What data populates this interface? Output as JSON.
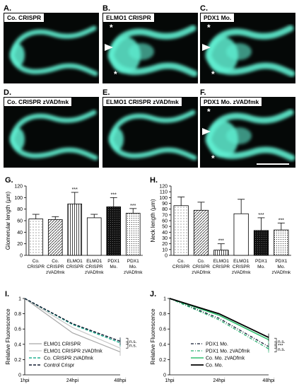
{
  "colors": {
    "fluorescence": "#5ff0d2",
    "background": "#050807"
  },
  "micrographs": [
    {
      "letter": "A.",
      "title": "Co. CRISPR",
      "stars": [],
      "arrowhead": false
    },
    {
      "letter": "B.",
      "title": "ELMO1 CRISPR",
      "stars": [
        "*",
        "*"
      ],
      "arrowhead": true
    },
    {
      "letter": "C.",
      "title": "PDX1 Mo.",
      "stars": [
        "*",
        "*"
      ],
      "arrowhead": true
    },
    {
      "letter": "D.",
      "title": "Co. CRISPR zVADfmk",
      "stars": [],
      "arrowhead": false
    },
    {
      "letter": "E.",
      "title": "ELMO1 CRISPR zVADfmk",
      "stars": [],
      "arrowhead": false
    },
    {
      "letter": "F.",
      "title": "PDX1 Mo. zVADfmk",
      "stars": [
        "*",
        "*"
      ],
      "arrowhead": true
    }
  ],
  "chart_data": [
    {
      "letter": "G.",
      "type": "bar",
      "ylabel": "Glomerular length (µm)",
      "ylim": [
        0,
        120
      ],
      "yticks": [
        "0",
        "20",
        "40",
        "60",
        "80",
        "100",
        "120"
      ],
      "categories": [
        [
          "Co.",
          "CRISPR"
        ],
        [
          "Co.",
          "CRISPR",
          "zVADfmk"
        ],
        [
          "ELMO1",
          "CRISPR"
        ],
        [
          "ELMO1",
          "CRISPR",
          "zVADfmk"
        ],
        [
          "PDX1",
          "Mo."
        ],
        [
          "PDX1",
          "Mo.",
          "zVADfmk"
        ]
      ],
      "values": [
        63,
        62,
        89,
        65,
        84,
        73
      ],
      "errors": [
        8,
        5,
        20,
        6,
        16,
        8
      ],
      "patterns": [
        "dots",
        "diag",
        "vlines",
        "white",
        "black",
        "dotsdense"
      ],
      "annotations": [
        "",
        "",
        "***",
        "",
        "***",
        "***"
      ]
    },
    {
      "letter": "H.",
      "type": "bar",
      "ylabel": "Neck length (µm)",
      "ylim": [
        0,
        120
      ],
      "yticks": [
        "0",
        "10",
        "20",
        "30",
        "40",
        "50",
        "60",
        "70",
        "80",
        "90",
        "100",
        "110",
        "120"
      ],
      "categories": [
        [
          "Co.",
          "CRISPR"
        ],
        [
          "Co.",
          "CRISPR",
          "zVADfmk"
        ],
        [
          "ELMO1",
          "CRISPR"
        ],
        [
          "ELMO1",
          "CRISPR",
          "zVADfmk"
        ],
        [
          "PDX1",
          "Mo."
        ],
        [
          "PDX1",
          "Mo.",
          "zVADfmk"
        ]
      ],
      "values": [
        86,
        78,
        9,
        72,
        43,
        44
      ],
      "errors": [
        15,
        14,
        11,
        25,
        22,
        12
      ],
      "patterns": [
        "dots",
        "diag",
        "vlines",
        "white",
        "black",
        "dotsdense"
      ],
      "annotations": [
        "",
        "",
        "***",
        "",
        "***",
        "***"
      ]
    },
    {
      "letter": "I.",
      "type": "line",
      "ylabel": "Relative Fluorescence",
      "ylim": [
        0,
        1
      ],
      "yticks": [
        "0",
        "0.2",
        "0.4",
        "0.6",
        "0.8",
        "1"
      ],
      "x": [
        "1hpi",
        "24hpi",
        "48hpi"
      ],
      "series": [
        {
          "name": "ELMO1 CRISPR",
          "values": [
            1.0,
            0.55,
            0.3
          ],
          "color": "#a8a8a8",
          "dash": "",
          "width": 1.2
        },
        {
          "name": "ELMO1 CRISPR zVADfmk",
          "values": [
            1.0,
            0.62,
            0.35
          ],
          "color": "#c8c8c8",
          "dash": "",
          "width": 1.2
        },
        {
          "name": "Co. CRISPR zVADfmk",
          "values": [
            1.0,
            0.66,
            0.42
          ],
          "color": "#20b090",
          "dash": "4,2",
          "width": 1.4
        },
        {
          "name": "Control Crispr",
          "values": [
            1.0,
            0.67,
            0.44
          ],
          "color": "#101a30",
          "dash": "4,2",
          "width": 1.4
        }
      ],
      "significance": [
        "n.s.",
        "n.s."
      ]
    },
    {
      "letter": "J.",
      "type": "line",
      "ylabel": "Relative Fluorescence",
      "ylim": [
        0,
        1
      ],
      "yticks": [
        "0",
        "0.2",
        "0.4",
        "0.6",
        "0.8",
        "1"
      ],
      "x": [
        "1hpi",
        "24hpi",
        "48hpi"
      ],
      "series": [
        {
          "name": "PDX1 Mo.",
          "values": [
            1.0,
            0.74,
            0.37
          ],
          "color": "#101a30",
          "dash": "4,2,1,2",
          "width": 1.3
        },
        {
          "name": "PDX1 Mo. zVADfmk",
          "values": [
            1.0,
            0.72,
            0.34
          ],
          "color": "#28b070",
          "dash": "4,2,1,2",
          "width": 1.3
        },
        {
          "name": "Co. Mo. zVADfmk",
          "values": [
            1.0,
            0.78,
            0.46
          ],
          "color": "#30c070",
          "dash": "",
          "width": 1.6
        },
        {
          "name": "Co. Mo.",
          "values": [
            1.0,
            0.8,
            0.49
          ],
          "color": "#000000",
          "dash": "",
          "width": 1.8
        }
      ],
      "significance": [
        "n.s.",
        "***",
        "n.s."
      ]
    }
  ]
}
